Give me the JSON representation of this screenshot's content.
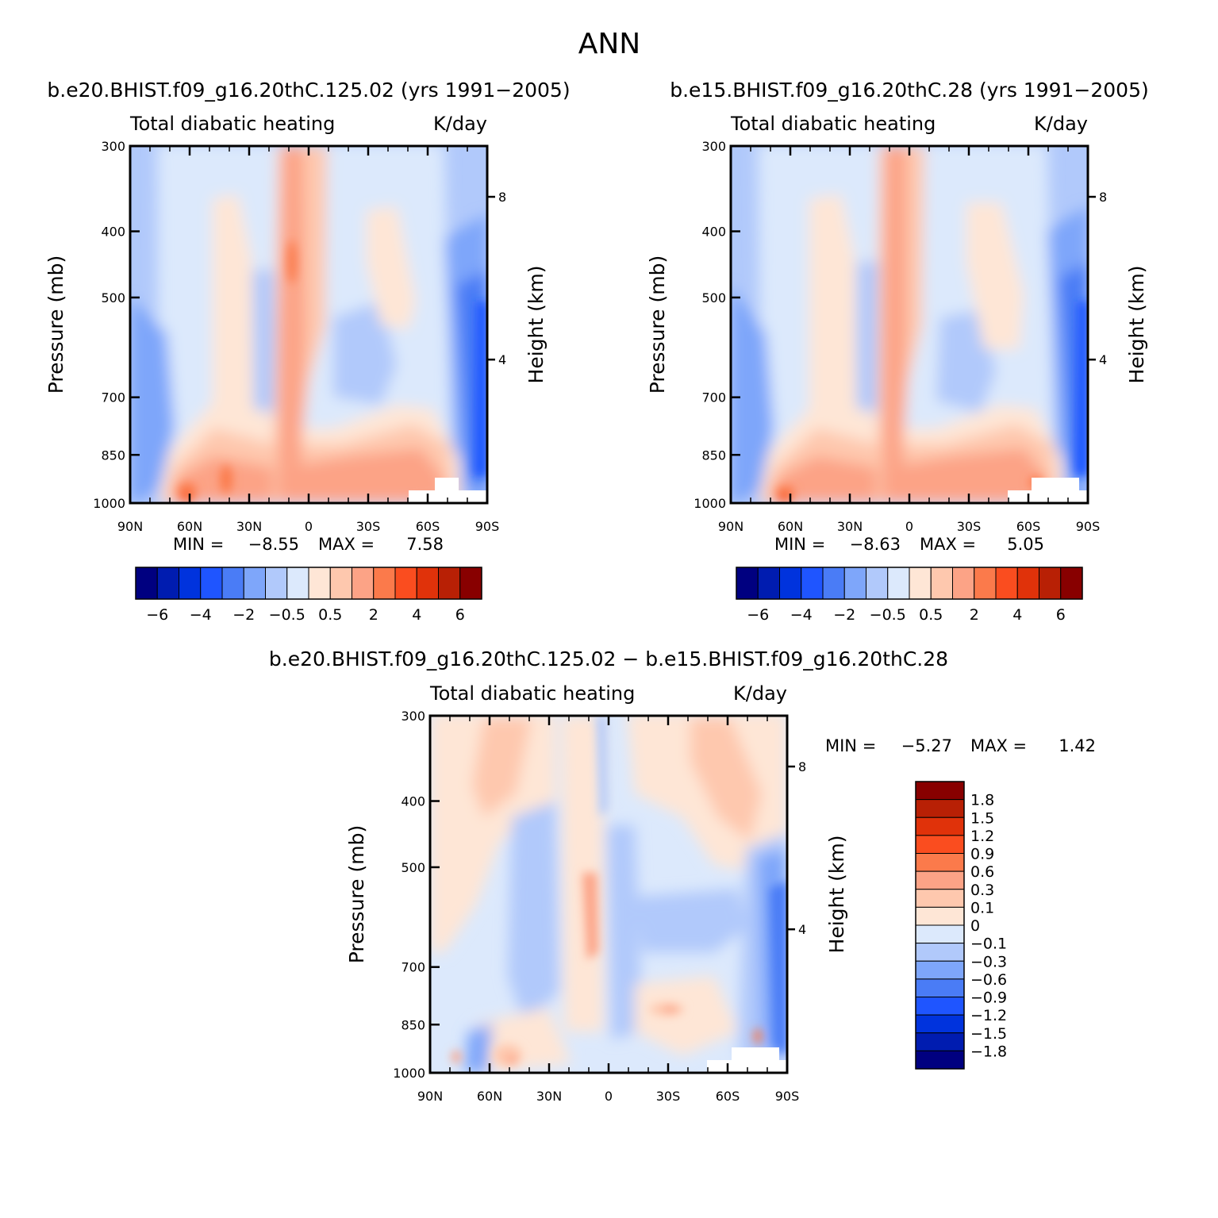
{
  "title": "ANN",
  "colors": {
    "neg": [
      "#000080",
      "#001cb0",
      "#0033dd",
      "#1f55ff",
      "#4a7cf6",
      "#7ea6fa",
      "#b1c9fb",
      "#dce9fc"
    ],
    "pos": [
      "#fee6d6",
      "#fec8ae",
      "#fca386",
      "#fb7a4b",
      "#fa4d1f",
      "#e0320a",
      "#b82005",
      "#880000"
    ]
  },
  "chart_data": [
    {
      "type": "heatmap",
      "id": "model",
      "title": "b.e20.BHIST.f09_g16.20thC.125.02 (yrs 1991−2005)",
      "variable": "Total diabatic heating",
      "units": "K/day",
      "xlabel": "",
      "ylabel": "Pressure (mb)",
      "y2label": "Height (km)",
      "x_ticks": [
        "90N",
        "60N",
        "30N",
        "0",
        "30S",
        "60S",
        "90S"
      ],
      "y_ticks": [
        "300",
        "400",
        "500",
        "700",
        "850",
        "1000"
      ],
      "y2_ticks": [
        "8",
        "4"
      ],
      "xlim": [
        90,
        -90
      ],
      "ylim": [
        1000,
        300
      ],
      "min_label": "MIN =",
      "min_value": "−8.55",
      "max_label": "MAX =",
      "max_value": "7.58",
      "colorbar_labels": [
        "−6",
        "−4",
        "−2",
        "−0.5",
        "0.5",
        "2",
        "4",
        "6"
      ],
      "color_levels": [
        -6,
        -5,
        -4,
        -3,
        -2,
        -1,
        -0.5,
        0,
        0.5,
        1,
        2,
        3,
        4,
        5,
        6
      ]
    },
    {
      "type": "heatmap",
      "id": "obs",
      "title": "b.e15.BHIST.f09_g16.20thC.28 (yrs 1991−2005)",
      "variable": "Total diabatic heating",
      "units": "K/day",
      "xlabel": "",
      "ylabel": "Pressure (mb)",
      "y2label": "Height (km)",
      "x_ticks": [
        "90N",
        "60N",
        "30N",
        "0",
        "30S",
        "60S",
        "90S"
      ],
      "y_ticks": [
        "300",
        "400",
        "500",
        "700",
        "850",
        "1000"
      ],
      "y2_ticks": [
        "8",
        "4"
      ],
      "xlim": [
        90,
        -90
      ],
      "ylim": [
        1000,
        300
      ],
      "min_label": "MIN =",
      "min_value": "−8.63",
      "max_label": "MAX =",
      "max_value": "5.05",
      "colorbar_labels": [
        "−6",
        "−4",
        "−2",
        "−0.5",
        "0.5",
        "2",
        "4",
        "6"
      ],
      "color_levels": [
        -6,
        -5,
        -4,
        -3,
        -2,
        -1,
        -0.5,
        0,
        0.5,
        1,
        2,
        3,
        4,
        5,
        6
      ]
    },
    {
      "type": "heatmap",
      "id": "diff",
      "title": "b.e20.BHIST.f09_g16.20thC.125.02 − b.e15.BHIST.f09_g16.20thC.28",
      "variable": "Total diabatic heating",
      "units": "K/day",
      "xlabel": "",
      "ylabel": "Pressure (mb)",
      "y2label": "Height (km)",
      "x_ticks": [
        "90N",
        "60N",
        "30N",
        "0",
        "30S",
        "60S",
        "90S"
      ],
      "y_ticks": [
        "300",
        "400",
        "500",
        "700",
        "850",
        "1000"
      ],
      "y2_ticks": [
        "8",
        "4"
      ],
      "xlim": [
        90,
        -90
      ],
      "ylim": [
        1000,
        300
      ],
      "min_label": "MIN =",
      "min_value": "−5.27",
      "max_label": "MAX =",
      "max_value": "1.42",
      "colorbar_labels": [
        "1.8",
        "1.5",
        "1.2",
        "0.9",
        "0.6",
        "0.3",
        "0.1",
        "0",
        "−0.1",
        "−0.3",
        "−0.6",
        "−0.9",
        "−1.2",
        "−1.5",
        "−1.8"
      ],
      "color_levels": [
        -1.8,
        -1.5,
        -1.2,
        -0.9,
        -0.6,
        -0.3,
        -0.1,
        0,
        0.1,
        0.3,
        0.6,
        0.9,
        1.2,
        1.5,
        1.8
      ]
    }
  ]
}
